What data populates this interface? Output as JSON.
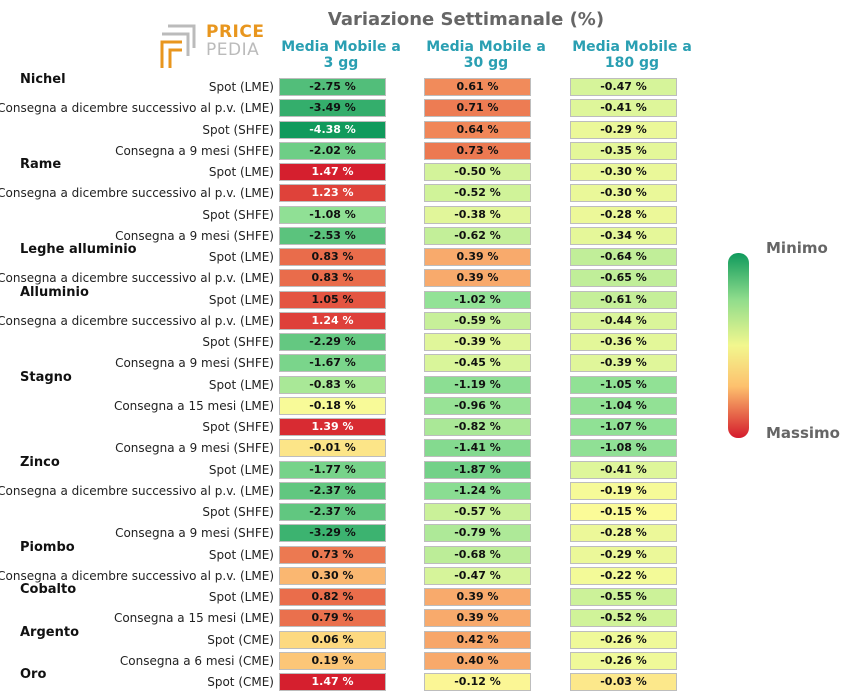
{
  "chart_data": {
    "type": "table",
    "title": "Variazione Settimanale (%)",
    "columns": [
      "Media Mobile a 3 gg",
      "Media Mobile a 30 gg",
      "Media Mobile a 180 gg"
    ],
    "groups": [
      {
        "name": "Nichel",
        "rows": [
          {
            "label": "Spot (LME)",
            "values": [
              -2.75,
              0.61,
              -0.47
            ]
          },
          {
            "label": "Consegna a dicembre successivo al p.v. (LME)",
            "values": [
              -3.49,
              0.71,
              -0.41
            ]
          },
          {
            "label": "Spot (SHFE)",
            "values": [
              -4.38,
              0.64,
              -0.29
            ]
          },
          {
            "label": "Consegna a 9 mesi (SHFE)",
            "values": [
              -2.02,
              0.73,
              -0.35
            ]
          }
        ]
      },
      {
        "name": "Rame",
        "rows": [
          {
            "label": "Spot (LME)",
            "values": [
              1.47,
              -0.5,
              -0.3
            ]
          },
          {
            "label": "Consegna a dicembre successivo al p.v. (LME)",
            "values": [
              1.23,
              -0.52,
              -0.3
            ]
          },
          {
            "label": "Spot (SHFE)",
            "values": [
              -1.08,
              -0.38,
              -0.28
            ]
          },
          {
            "label": "Consegna a 9 mesi (SHFE)",
            "values": [
              -2.53,
              -0.62,
              -0.34
            ]
          }
        ]
      },
      {
        "name": "Leghe alluminio",
        "rows": [
          {
            "label": "Spot (LME)",
            "values": [
              0.83,
              0.39,
              -0.64
            ]
          },
          {
            "label": "Consegna a dicembre successivo al p.v. (LME)",
            "values": [
              0.83,
              0.39,
              -0.65
            ]
          }
        ]
      },
      {
        "name": "Alluminio",
        "rows": [
          {
            "label": "Spot (LME)",
            "values": [
              1.05,
              -1.02,
              -0.61
            ]
          },
          {
            "label": "Consegna a dicembre successivo al p.v. (LME)",
            "values": [
              1.24,
              -0.59,
              -0.44
            ]
          },
          {
            "label": "Spot (SHFE)",
            "values": [
              -2.29,
              -0.39,
              -0.36
            ]
          },
          {
            "label": "Consegna a 9 mesi (SHFE)",
            "values": [
              -1.67,
              -0.45,
              -0.39
            ]
          }
        ]
      },
      {
        "name": "Stagno",
        "rows": [
          {
            "label": "Spot (LME)",
            "values": [
              -0.83,
              -1.19,
              -1.05
            ]
          },
          {
            "label": "Consegna a 15 mesi (LME)",
            "values": [
              -0.18,
              -0.96,
              -1.04
            ]
          },
          {
            "label": "Spot (SHFE)",
            "values": [
              1.39,
              -0.82,
              -1.07
            ]
          },
          {
            "label": "Consegna a 9 mesi (SHFE)",
            "values": [
              -0.01,
              -1.41,
              -1.08
            ]
          }
        ]
      },
      {
        "name": "Zinco",
        "rows": [
          {
            "label": "Spot (LME)",
            "values": [
              -1.77,
              -1.87,
              -0.41
            ]
          },
          {
            "label": "Consegna a dicembre successivo al p.v. (LME)",
            "values": [
              -2.37,
              -1.24,
              -0.19
            ]
          },
          {
            "label": "Spot (SHFE)",
            "values": [
              -2.37,
              -0.57,
              -0.15
            ]
          },
          {
            "label": "Consegna a 9 mesi (SHFE)",
            "values": [
              -3.29,
              -0.79,
              -0.28
            ]
          }
        ]
      },
      {
        "name": "Piombo",
        "rows": [
          {
            "label": "Spot (LME)",
            "values": [
              0.73,
              -0.68,
              -0.29
            ]
          },
          {
            "label": "Consegna a dicembre successivo al p.v. (LME)",
            "values": [
              0.3,
              -0.47,
              -0.22
            ]
          }
        ]
      },
      {
        "name": "Cobalto",
        "rows": [
          {
            "label": "Spot (LME)",
            "values": [
              0.82,
              0.39,
              -0.55
            ]
          },
          {
            "label": "Consegna a 15 mesi (LME)",
            "values": [
              0.79,
              0.39,
              -0.52
            ]
          }
        ]
      },
      {
        "name": "Argento",
        "rows": [
          {
            "label": "Spot (CME)",
            "values": [
              0.06,
              0.42,
              -0.26
            ]
          },
          {
            "label": "Consegna a 6 mesi (CME)",
            "values": [
              0.19,
              0.4,
              -0.26
            ]
          }
        ]
      },
      {
        "name": "Oro",
        "rows": [
          {
            "label": "Spot (CME)",
            "values": [
              1.47,
              -0.12,
              -0.03
            ]
          }
        ]
      }
    ],
    "legend": {
      "min_label": "Minimo",
      "max_label": "Massimo"
    }
  },
  "logo": {
    "line1": "PRICE",
    "line2": "PEDIA"
  },
  "colors": {
    "min": "#0f9a5c",
    "mid": "#f2f78e",
    "max": "#d41b2c",
    "header": "#2a9fb2"
  }
}
